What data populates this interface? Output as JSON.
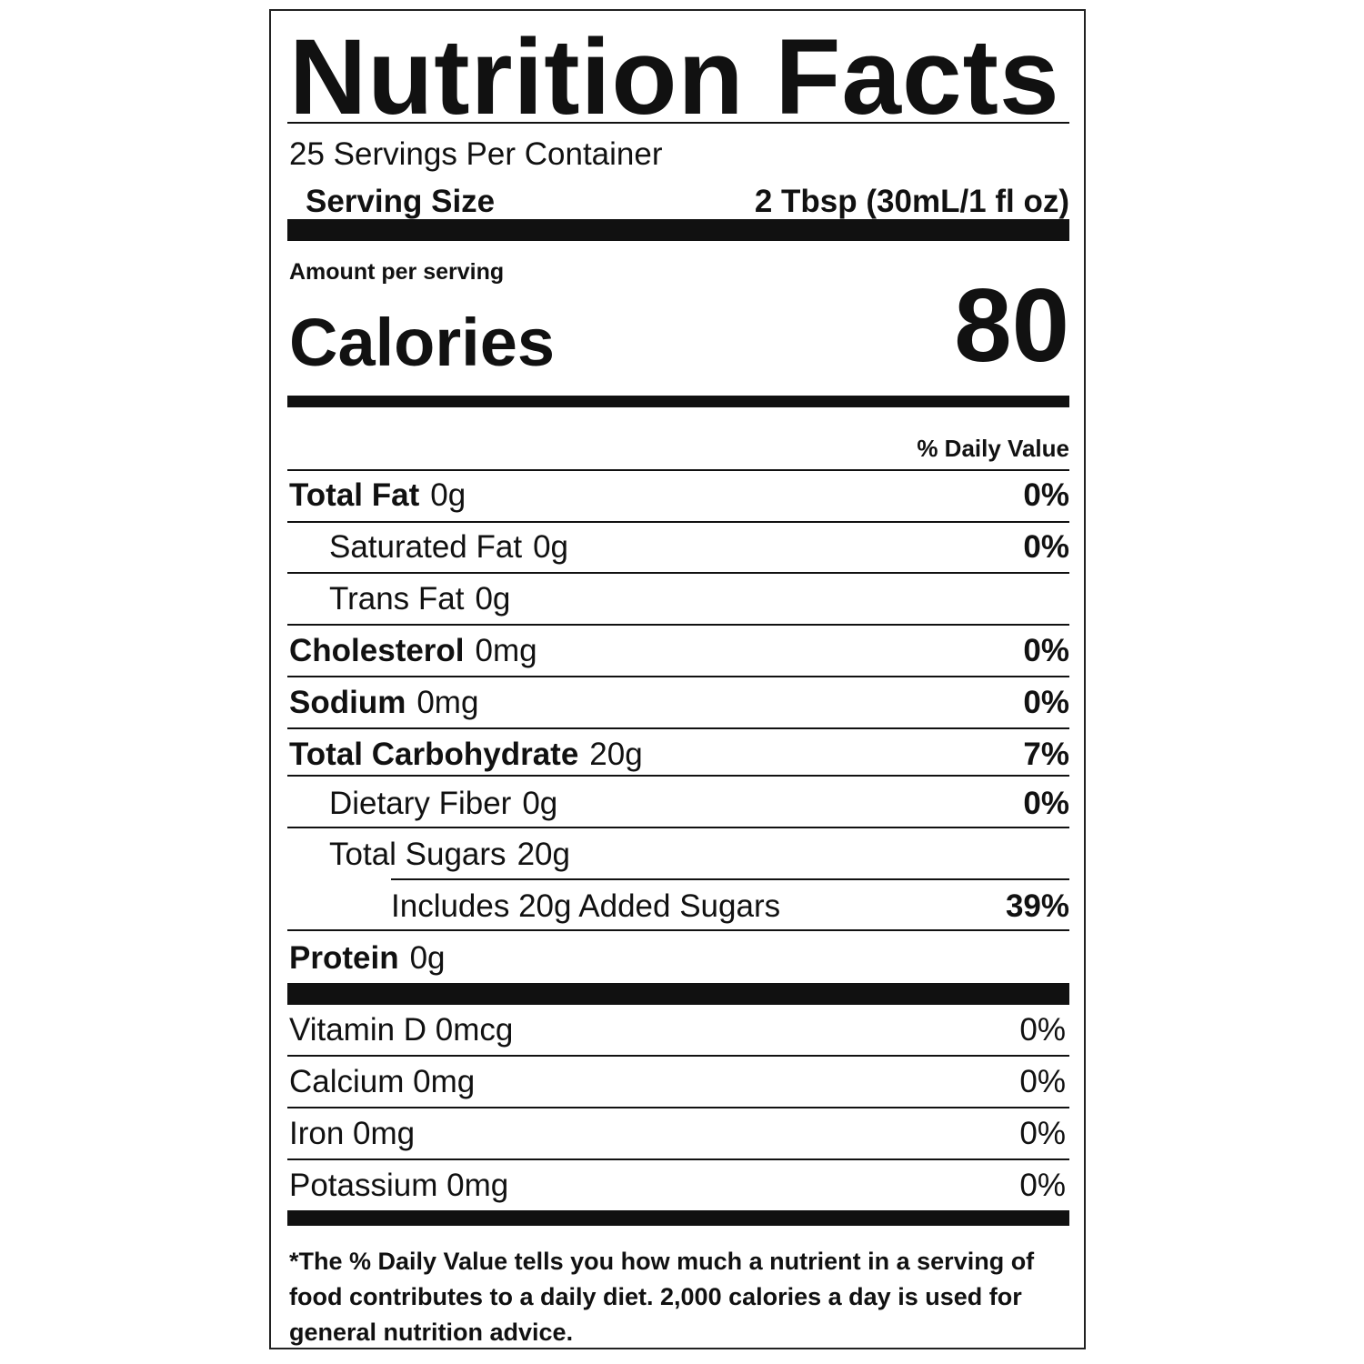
{
  "title": "Nutrition Facts",
  "servings_per_container": "25 Servings Per Container",
  "serving_size": {
    "label": "Serving Size",
    "value": "2 Tbsp (30mL/1 fl oz)"
  },
  "amount_per_serving": "Amount per serving",
  "calories": {
    "label": "Calories",
    "value": "80"
  },
  "daily_value_header": "% Daily Value",
  "nutrients": [
    {
      "name": "Total Fat",
      "amount": "0g",
      "dv": "0%"
    },
    {
      "name": "Saturated Fat",
      "amount": "0g",
      "dv": "0%"
    },
    {
      "name": "Trans Fat",
      "amount": "0g",
      "dv": ""
    },
    {
      "name": "Cholesterol",
      "amount": "0mg",
      "dv": "0%"
    },
    {
      "name": "Sodium",
      "amount": "0mg",
      "dv": "0%"
    },
    {
      "name": "Total Carbohydrate",
      "amount": "20g",
      "dv": "7%"
    },
    {
      "name": "Dietary Fiber",
      "amount": "0g",
      "dv": "0%"
    },
    {
      "name": "Total Sugars",
      "amount": "20g",
      "dv": ""
    },
    {
      "name": "Includes 20g Added Sugars",
      "amount": "",
      "dv": "39%"
    },
    {
      "name": "Protein",
      "amount": "0g",
      "dv": ""
    }
  ],
  "vitamins": [
    {
      "name": "Vitamin D 0mcg",
      "dv": "0%"
    },
    {
      "name": "Calcium 0mg",
      "dv": "0%"
    },
    {
      "name": "Iron 0mg",
      "dv": "0%"
    },
    {
      "name": "Potassium 0mg",
      "dv": "0%"
    }
  ],
  "footnote": "*The % Daily Value tells you how much a nutrient in a serving of food contributes to a daily diet.  2,000 calories a day is used for general nutrition advice."
}
